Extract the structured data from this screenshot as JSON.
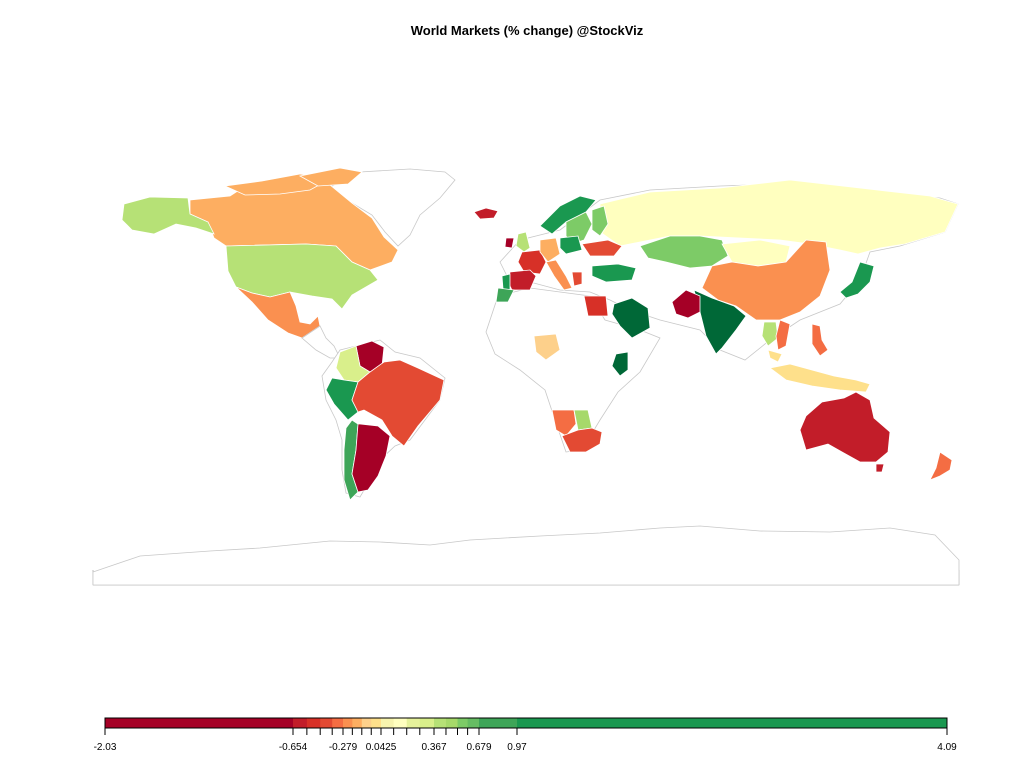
{
  "chart_data": {
    "type": "choropleth",
    "title": "World Markets (% change) @StockViz",
    "color_scale": {
      "palette": [
        "#a50026",
        "#c21d29",
        "#d73027",
        "#e34a33",
        "#f46d43",
        "#fa9050",
        "#fdae61",
        "#fdd08b",
        "#fee08b",
        "#f7f4ae",
        "#ffffbf",
        "#e6f29b",
        "#d9ef8b",
        "#b6e176",
        "#a6d96a",
        "#7dcb67",
        "#66bd63",
        "#3ea558",
        "#1a9850",
        "#006837"
      ],
      "ticks": [
        -2.03,
        -0.654,
        -0.279,
        0.0425,
        0.367,
        0.679,
        0.97,
        4.09
      ],
      "tick_labels": [
        "-2.03",
        "-0.654",
        "-0.279",
        "0.0425",
        "0.367",
        "0.679",
        "0.97",
        "4.09"
      ],
      "breaks": [
        -2.03,
        -0.654,
        -0.55,
        -0.45,
        -0.36,
        -0.279,
        -0.2,
        -0.12,
        -0.04,
        0.0425,
        0.12,
        0.2,
        0.28,
        0.367,
        0.45,
        0.53,
        0.6,
        0.679,
        0.97,
        4.09
      ]
    },
    "regions": [
      {
        "name": "Canada",
        "color": "#fdae61"
      },
      {
        "name": "United States",
        "color": "#b6e176"
      },
      {
        "name": "Mexico",
        "color": "#fa9050"
      },
      {
        "name": "Venezuela",
        "color": "#a50026"
      },
      {
        "name": "Colombia",
        "color": "#d9ef8b"
      },
      {
        "name": "Peru",
        "color": "#1a9850"
      },
      {
        "name": "Brazil",
        "color": "#e34a33"
      },
      {
        "name": "Argentina",
        "color": "#a50026"
      },
      {
        "name": "Chile",
        "color": "#3ea558"
      },
      {
        "name": "Iceland",
        "color": "#c21d29"
      },
      {
        "name": "Norway",
        "color": "#1a9850"
      },
      {
        "name": "Sweden",
        "color": "#7dcb67"
      },
      {
        "name": "Finland",
        "color": "#7dcb67"
      },
      {
        "name": "Russia",
        "color": "#ffffbf"
      },
      {
        "name": "Kazakhstan",
        "color": "#7dcb67"
      },
      {
        "name": "China",
        "color": "#fa9050"
      },
      {
        "name": "Mongolia",
        "color": "#ffffbf"
      },
      {
        "name": "Japan",
        "color": "#1a9850"
      },
      {
        "name": "India",
        "color": "#006837"
      },
      {
        "name": "Pakistan",
        "color": "#a50026"
      },
      {
        "name": "Saudi Arabia",
        "color": "#006837"
      },
      {
        "name": "Egypt",
        "color": "#d73027"
      },
      {
        "name": "Kenya",
        "color": "#006837"
      },
      {
        "name": "Nigeria",
        "color": "#fdd08b"
      },
      {
        "name": "South Africa",
        "color": "#e34a33"
      },
      {
        "name": "Namibia",
        "color": "#f46d43"
      },
      {
        "name": "Botswana",
        "color": "#a6d96a"
      },
      {
        "name": "Australia",
        "color": "#c21d29"
      },
      {
        "name": "New Zealand",
        "color": "#f46d43"
      },
      {
        "name": "Indonesia",
        "color": "#fee08b"
      },
      {
        "name": "Philippines",
        "color": "#f46d43"
      },
      {
        "name": "Thailand",
        "color": "#b6e176"
      },
      {
        "name": "Vietnam",
        "color": "#f46d43"
      },
      {
        "name": "Malaysia",
        "color": "#fee08b"
      },
      {
        "name": "Turkey",
        "color": "#1a9850"
      },
      {
        "name": "Spain",
        "color": "#c21d29"
      },
      {
        "name": "France",
        "color": "#d73027"
      },
      {
        "name": "Portugal",
        "color": "#1a9850"
      },
      {
        "name": "United Kingdom",
        "color": "#b6e176"
      },
      {
        "name": "Ireland",
        "color": "#a50026"
      },
      {
        "name": "Italy",
        "color": "#fa9050"
      },
      {
        "name": "Germany",
        "color": "#fdae61"
      },
      {
        "name": "Poland",
        "color": "#1a9850"
      },
      {
        "name": "Ukraine",
        "color": "#e34a33"
      },
      {
        "name": "Morocco",
        "color": "#3ea558"
      },
      {
        "name": "Greece",
        "color": "#e34a33"
      }
    ]
  }
}
